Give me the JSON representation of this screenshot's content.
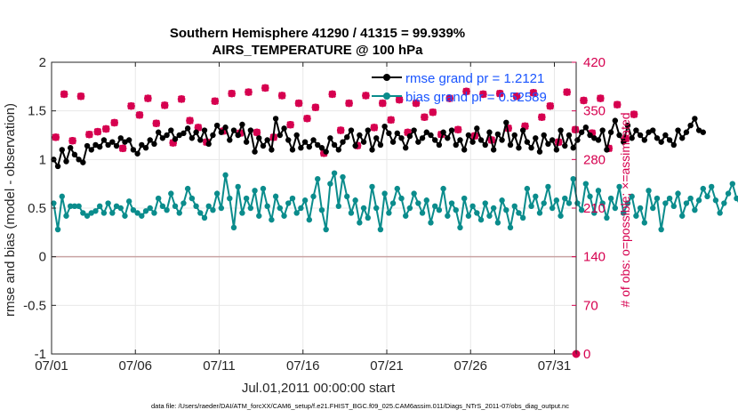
{
  "chart_data": {
    "type": "line",
    "title": "Southern Hemisphere 41290 / 41315 = 99.939%",
    "subtitle": "AIRS_TEMPERATURE @ 100 hPa",
    "xlabel": "Jul.01,2011 00:00:00 start",
    "ylabel": "rmse and bias (model - observation)",
    "ylabel_right": "# of obs: o=possible; ×=assimilated",
    "x_ticks": [
      "07/01",
      "07/06",
      "07/11",
      "07/16",
      "07/21",
      "07/26",
      "07/31"
    ],
    "y_ticks": [
      "-1",
      "-0.5",
      "0",
      "0.5",
      "1",
      "1.5",
      "2"
    ],
    "y_right_ticks": [
      "0",
      "70",
      "140",
      "210",
      "280",
      "350",
      "420"
    ],
    "xlim": [
      0,
      31.3
    ],
    "ylim": [
      -1,
      2
    ],
    "ylim_right": [
      0,
      420
    ],
    "x_tick_values": [
      0,
      5,
      10,
      15,
      20,
      25,
      30
    ],
    "grid": true,
    "legend_position": "top-right",
    "colors": {
      "rmse": "#000000",
      "bias": "#0a8c8c",
      "obs": "#d6004f",
      "axis": "#262626",
      "zero": "#c9a3a3",
      "grid": "#e8e8e8",
      "legend_text": "#1a55ff"
    },
    "series": [
      {
        "name": "rmse grand pr = 1.2121",
        "x_step": 0.25,
        "values": [
          1.0,
          0.93,
          1.1,
          0.98,
          1.12,
          1.05,
          1.0,
          0.97,
          1.14,
          1.1,
          1.15,
          1.13,
          1.2,
          1.15,
          1.18,
          1.14,
          1.22,
          1.18,
          1.2,
          1.1,
          1.06,
          1.15,
          1.12,
          1.2,
          1.16,
          1.28,
          1.22,
          1.25,
          1.3,
          1.21,
          1.25,
          1.27,
          1.32,
          1.22,
          1.28,
          1.2,
          1.3,
          1.16,
          1.25,
          1.35,
          1.28,
          1.33,
          1.2,
          1.3,
          1.25,
          1.36,
          1.18,
          1.3,
          1.08,
          1.22,
          1.14,
          1.2,
          1.1,
          1.42,
          1.25,
          1.32,
          1.2,
          1.1,
          1.25,
          1.12,
          1.18,
          1.13,
          1.2,
          1.15,
          1.12,
          1.08,
          1.22,
          1.15,
          1.1,
          1.18,
          1.23,
          1.3,
          1.14,
          1.25,
          1.18,
          1.3,
          1.1,
          1.22,
          1.15,
          1.34,
          1.27,
          1.18,
          1.27,
          1.22,
          1.12,
          1.24,
          1.3,
          1.18,
          1.22,
          1.28,
          1.25,
          1.2,
          1.15,
          1.28,
          1.22,
          1.3,
          1.15,
          1.2,
          1.1,
          1.25,
          1.18,
          1.32,
          1.2,
          1.15,
          1.28,
          1.1,
          1.26,
          1.2,
          1.38,
          1.15,
          1.25,
          1.12,
          1.3,
          1.18,
          1.12,
          1.22,
          1.08,
          1.25,
          1.16,
          1.2,
          1.1,
          1.3,
          1.14,
          1.25,
          1.12,
          1.2,
          1.28,
          1.33,
          1.25,
          1.22,
          1.2,
          1.3,
          1.1,
          1.28,
          1.4,
          1.25,
          1.18,
          1.35,
          1.22,
          1.3,
          1.25,
          1.2,
          1.28,
          1.3,
          1.22,
          1.18,
          1.25,
          1.2,
          1.15,
          1.3,
          1.22,
          1.28,
          1.35,
          1.42,
          1.3,
          1.28
        ]
      },
      {
        "name": "bias grand pr = 0.52589",
        "x_step": 0.25,
        "values": [
          0.55,
          0.28,
          0.62,
          0.42,
          0.52,
          0.52,
          0.52,
          0.45,
          0.42,
          0.45,
          0.47,
          0.52,
          0.45,
          0.55,
          0.45,
          0.52,
          0.5,
          0.42,
          0.57,
          0.48,
          0.45,
          0.42,
          0.47,
          0.5,
          0.45,
          0.6,
          0.52,
          0.48,
          0.65,
          0.52,
          0.45,
          0.55,
          0.7,
          0.6,
          0.52,
          0.45,
          0.4,
          0.52,
          0.48,
          0.65,
          0.5,
          0.84,
          0.6,
          0.3,
          0.72,
          0.45,
          0.6,
          0.5,
          0.68,
          0.42,
          0.7,
          0.52,
          0.38,
          0.62,
          0.5,
          0.42,
          0.55,
          0.6,
          0.45,
          0.5,
          0.58,
          0.38,
          0.62,
          0.8,
          0.48,
          0.28,
          0.75,
          0.86,
          0.52,
          0.82,
          0.62,
          0.45,
          0.58,
          0.35,
          0.5,
          0.4,
          0.72,
          0.5,
          0.28,
          0.65,
          0.45,
          0.55,
          0.7,
          0.6,
          0.42,
          0.5,
          0.65,
          0.55,
          0.45,
          0.58,
          0.35,
          0.52,
          0.48,
          0.7,
          0.42,
          0.55,
          0.48,
          0.3,
          0.6,
          0.42,
          0.52,
          0.45,
          0.38,
          0.55,
          0.42,
          0.5,
          0.35,
          0.58,
          0.48,
          0.3,
          0.52,
          0.45,
          0.4,
          0.7,
          0.52,
          0.62,
          0.45,
          0.55,
          0.72,
          0.5,
          0.58,
          0.42,
          0.6,
          0.55,
          0.8,
          0.55,
          0.48,
          0.75,
          0.62,
          0.45,
          0.68,
          0.55,
          0.4,
          0.6,
          0.5,
          0.72,
          0.45,
          0.55,
          0.62,
          0.42,
          0.5,
          0.35,
          0.68,
          0.5,
          0.6,
          0.28,
          0.55,
          0.6,
          0.52,
          0.65,
          0.42,
          0.55,
          0.6,
          0.48,
          0.58,
          0.7,
          0.62,
          0.72,
          0.58,
          0.45,
          0.55,
          0.65,
          0.75,
          0.6,
          0.52,
          0.65,
          0.7,
          0.45,
          0.5,
          0.68,
          0.6,
          0.52,
          0.48,
          0.72,
          0.95,
          0.68,
          0.62,
          0.55,
          0.72,
          0.58,
          0.48,
          0.62,
          0.5,
          0.55,
          0.7,
          0.62,
          0.72,
          0.65,
          0.52,
          0.62,
          0.58,
          0.72,
          0.6,
          0.62,
          0.68,
          0.65
        ]
      },
      {
        "name": "obs possible",
        "axis": "right",
        "x_step": 0.5,
        "values": [
          312,
          374,
          307,
          371,
          316,
          320,
          324,
          333,
          296,
          357,
          344,
          368,
          332,
          358,
          304,
          367,
          336,
          326,
          305,
          364,
          321,
          375,
          318,
          377,
          319,
          383,
          312,
          372,
          330,
          361,
          339,
          355,
          289,
          374,
          322,
          361,
          300,
          372,
          326,
          361,
          337,
          366,
          319,
          361,
          341,
          348,
          316,
          368,
          323,
          378,
          314,
          374,
          308,
          375,
          325,
          371,
          328,
          376,
          341,
          357,
          305,
          377,
          323,
          365,
          318,
          368,
          296,
          359,
          310,
          345
        ]
      },
      {
        "name": "obs assimilated",
        "axis": "right",
        "x_step": 0.5,
        "values": [
          312,
          374,
          307,
          371,
          316,
          320,
          324,
          333,
          296,
          357,
          344,
          368,
          332,
          358,
          304,
          367,
          336,
          326,
          305,
          364,
          321,
          375,
          318,
          377,
          319,
          383,
          312,
          372,
          330,
          361,
          339,
          355,
          289,
          374,
          322,
          361,
          300,
          372,
          326,
          361,
          337,
          366,
          319,
          361,
          341,
          348,
          316,
          368,
          323,
          378,
          314,
          374,
          308,
          375,
          325,
          371,
          328,
          376,
          341,
          357,
          305,
          377,
          323,
          365,
          318,
          368,
          296,
          359,
          310,
          345
        ]
      }
    ],
    "legend": [
      {
        "label": "rmse grand pr = 1.2121",
        "series": "rmse"
      },
      {
        "label": "bias grand pr = 0.52589",
        "series": "bias"
      }
    ],
    "extra_point": {
      "x": 31.3,
      "y_right": 0,
      "series": "obs"
    }
  },
  "footer": {
    "data_file": "data file: /Users/raeder/DAI/ATM_forcXX/CAM6_setup/f.e21.FHIST_BGC.f09_025.CAM6assim.011/Diags_NTrS_2011-07/obs_diag_output.nc"
  }
}
